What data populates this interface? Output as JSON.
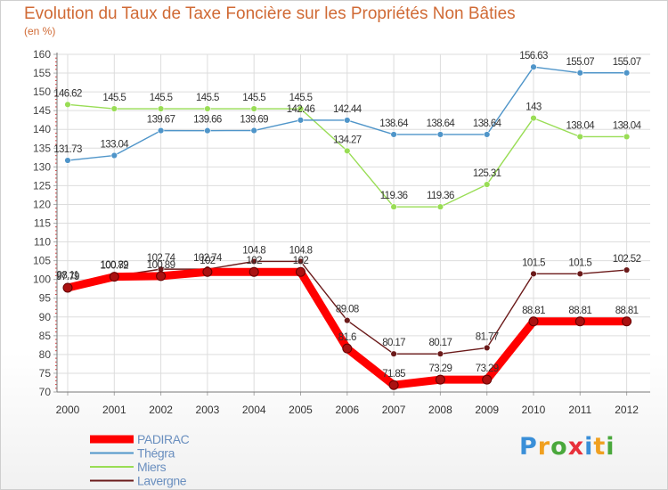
{
  "chart_data": {
    "type": "line",
    "title": "Evolution du Taux de Taxe Foncière sur les Propriétés Non Bâties",
    "ylabel": "(en %)",
    "xlabel": "",
    "categories": [
      "2000",
      "2001",
      "2002",
      "2003",
      "2004",
      "2005",
      "2006",
      "2007",
      "2008",
      "2009",
      "2010",
      "2011",
      "2012"
    ],
    "ylim": [
      70,
      160
    ],
    "yticks": [
      70,
      75,
      80,
      85,
      90,
      95,
      100,
      105,
      110,
      115,
      120,
      125,
      130,
      135,
      140,
      145,
      150,
      155,
      160
    ],
    "legend_position": "bottom-left",
    "series": [
      {
        "name": "Miers",
        "color": "#99dd55",
        "values": [
          146.62,
          145.5,
          145.5,
          145.5,
          145.5,
          145.5,
          134.27,
          119.36,
          119.36,
          125.31,
          143,
          138.04,
          138.04
        ],
        "labels": [
          "146.62",
          "145.5",
          "145.5",
          "145.5",
          "145.5",
          "145.5",
          "134.27",
          "119.36",
          "119.36",
          "125.31",
          "143",
          "138.04",
          "138.04"
        ]
      },
      {
        "name": "Thégra",
        "color": "#4f95c9",
        "values": [
          131.73,
          133.04,
          139.67,
          139.66,
          139.69,
          142.46,
          142.44,
          138.64,
          138.64,
          138.64,
          156.63,
          155.07,
          155.07
        ],
        "labels": [
          "131.73",
          "133.04",
          "139.67",
          "139.66",
          "139.69",
          "142.46",
          "142.44",
          "138.64",
          "138.64",
          "138.64",
          "156.63",
          "155.07",
          "155.07"
        ]
      },
      {
        "name": "Lavergne",
        "color": "#6b1a1a",
        "values": [
          98.11,
          100.89,
          102.74,
          102.74,
          104.8,
          104.8,
          89.08,
          80.17,
          80.17,
          81.77,
          101.5,
          101.5,
          102.52
        ],
        "labels": [
          "98.11",
          "100.89",
          "102.74",
          "102.74",
          "104.8",
          "104.8",
          "89.08",
          "80.17",
          "80.17",
          "81.77",
          "101.5",
          "101.5",
          "102.52"
        ]
      },
      {
        "name": "PADIRAC",
        "color": "#ff0000",
        "values": [
          97.79,
          100.72,
          100.89,
          102,
          102,
          102,
          81.6,
          71.85,
          73.29,
          73.29,
          88.81,
          88.81,
          88.81
        ],
        "labels": [
          "97.79",
          "100.72",
          "100.89",
          "102",
          "102",
          "102",
          "81.6",
          "71.85",
          "73.29",
          "73.29",
          "88.81",
          "88.81",
          "88.81"
        ]
      }
    ],
    "legend": [
      {
        "name": "PADIRAC",
        "color": "#ff0000"
      },
      {
        "name": "Thégra",
        "color": "#4f95c9"
      },
      {
        "name": "Miers",
        "color": "#99dd55"
      },
      {
        "name": "Lavergne",
        "color": "#6b1a1a"
      }
    ]
  },
  "logo": {
    "letters": [
      "P",
      "r",
      "o",
      "x",
      "i",
      "t",
      "i"
    ],
    "colors": [
      "#3a8fd8",
      "#f0a020",
      "#4aa83c",
      "#e8303a",
      "#3a8fd8",
      "#f0a020",
      "#4aa83c"
    ]
  }
}
